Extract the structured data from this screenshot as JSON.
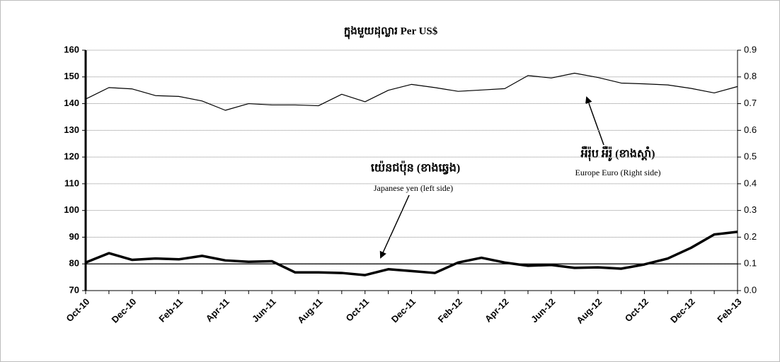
{
  "chart_data": {
    "type": "line",
    "title": "ក្នុងមួយដុល្លារ   Per US$",
    "categories": [
      "Oct-10",
      null,
      "Dec-10",
      null,
      "Feb-11",
      null,
      "Apr-11",
      null,
      "Jun-11",
      null,
      "Aug-11",
      null,
      "Oct-11",
      null,
      "Dec-11",
      null,
      "Feb-12",
      null,
      "Apr-12",
      null,
      "Jun-12",
      null,
      "Aug-12",
      null,
      "Oct-12",
      null,
      "Dec-12",
      null,
      "Feb-13"
    ],
    "series": [
      {
        "name": "យ៉េនជប៉ុន (ខាងឆ្វេង)",
        "color": "#000000",
        "axis": "y",
        "values": [
          80.5,
          84,
          81.5,
          82,
          81.7,
          83,
          81.3,
          80.8,
          81,
          76.8,
          76.8,
          76.6,
          75.8,
          78,
          77.3,
          76.6,
          80.5,
          82.3,
          80.5,
          79.3,
          79.6,
          78.5,
          78.7,
          78.2,
          79.8,
          82,
          86,
          91,
          92
        ]
      },
      {
        "name": "អឺរ៉ុប  អឺរ៉ូ (ខាងស្តាំ)",
        "color": "#000000",
        "axis": "y2",
        "values": [
          0.717,
          0.76,
          0.755,
          0.73,
          0.727,
          0.71,
          0.675,
          0.7,
          0.695,
          0.695,
          0.692,
          0.735,
          0.707,
          0.75,
          0.772,
          0.76,
          0.746,
          0.751,
          0.756,
          0.805,
          0.796,
          0.814,
          0.798,
          0.777,
          0.774,
          0.77,
          0.757,
          0.74,
          0.764
        ]
      }
    ],
    "annotations": [
      "Japanese yen  (left side)",
      "Europe Euro (Right side)"
    ],
    "ylim": [
      70,
      160
    ],
    "yticks": [
      70,
      80,
      90,
      100,
      110,
      120,
      130,
      140,
      150,
      160
    ],
    "y2lim": [
      0,
      0.9
    ],
    "y2ticks": [
      {
        "value": 0,
        "label": "0.0"
      },
      0.1,
      0.2,
      0.3,
      0.4,
      0.5,
      0.6,
      0.7,
      0.8,
      0.9
    ],
    "grid": true
  }
}
